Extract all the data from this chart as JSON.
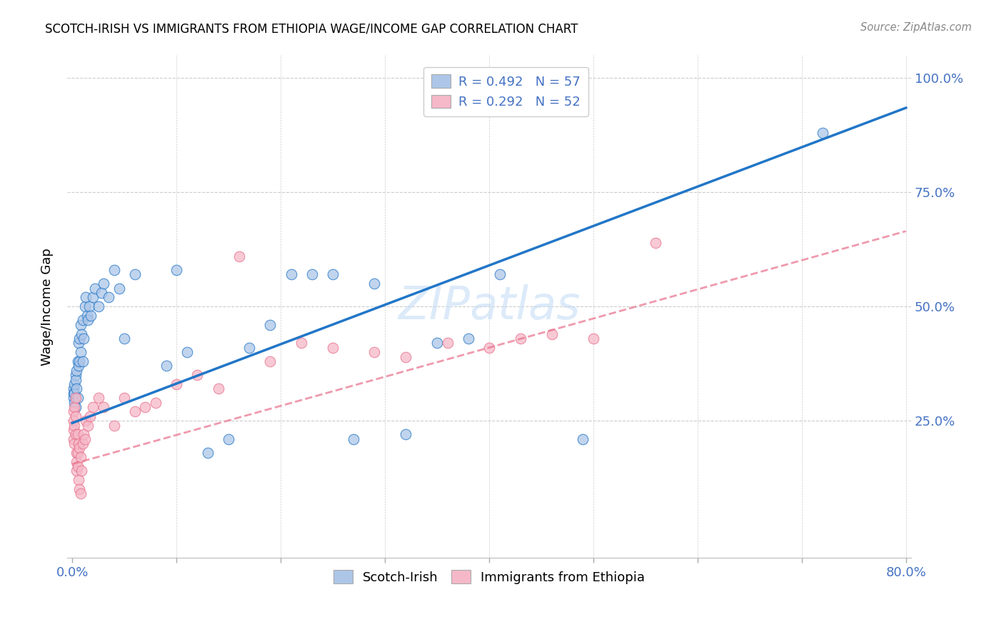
{
  "title": "SCOTCH-IRISH VS IMMIGRANTS FROM ETHIOPIA WAGE/INCOME GAP CORRELATION CHART",
  "source": "Source: ZipAtlas.com",
  "ylabel": "Wage/Income Gap",
  "ytick_labels": [
    "25.0%",
    "50.0%",
    "75.0%",
    "100.0%"
  ],
  "ytick_positions": [
    0.25,
    0.5,
    0.75,
    1.0
  ],
  "legend_r1": "R = 0.492",
  "legend_n1": "N = 57",
  "legend_r2": "R = 0.292",
  "legend_n2": "N = 52",
  "legend_label1": "Scotch-Irish",
  "legend_label2": "Immigrants from Ethiopia",
  "scotch_irish_color": "#adc6e8",
  "ethiopia_color": "#f5b8c8",
  "scotch_irish_line_color": "#2176c7",
  "ethiopia_line_color": "#e8708a",
  "watermark": "ZIPatlas",
  "xlim": [
    0.0,
    0.8
  ],
  "ylim": [
    -0.05,
    1.05
  ],
  "si_line_x0": 0.0,
  "si_line_y0": 0.245,
  "si_line_x1": 0.8,
  "si_line_y1": 0.935,
  "eth_line_x0": 0.0,
  "eth_line_y0": 0.155,
  "eth_line_x1": 0.8,
  "eth_line_y1": 0.665,
  "scotch_irish_x": [
    0.001,
    0.001,
    0.001,
    0.002,
    0.002,
    0.002,
    0.003,
    0.003,
    0.003,
    0.004,
    0.004,
    0.005,
    0.005,
    0.006,
    0.006,
    0.007,
    0.007,
    0.008,
    0.008,
    0.009,
    0.01,
    0.01,
    0.011,
    0.012,
    0.013,
    0.014,
    0.015,
    0.016,
    0.018,
    0.02,
    0.022,
    0.025,
    0.028,
    0.03,
    0.035,
    0.04,
    0.045,
    0.05,
    0.06,
    0.09,
    0.1,
    0.11,
    0.13,
    0.15,
    0.17,
    0.19,
    0.21,
    0.23,
    0.25,
    0.27,
    0.29,
    0.32,
    0.35,
    0.38,
    0.41,
    0.49,
    0.72
  ],
  "scotch_irish_y": [
    0.32,
    0.31,
    0.3,
    0.33,
    0.31,
    0.29,
    0.35,
    0.34,
    0.28,
    0.36,
    0.32,
    0.38,
    0.3,
    0.42,
    0.37,
    0.43,
    0.38,
    0.46,
    0.4,
    0.44,
    0.47,
    0.38,
    0.43,
    0.5,
    0.52,
    0.48,
    0.47,
    0.5,
    0.48,
    0.52,
    0.54,
    0.5,
    0.53,
    0.55,
    0.52,
    0.58,
    0.54,
    0.43,
    0.57,
    0.37,
    0.58,
    0.4,
    0.18,
    0.21,
    0.41,
    0.46,
    0.57,
    0.57,
    0.57,
    0.21,
    0.55,
    0.22,
    0.42,
    0.43,
    0.57,
    0.21,
    0.88
  ],
  "ethiopia_x": [
    0.001,
    0.001,
    0.001,
    0.001,
    0.002,
    0.002,
    0.002,
    0.003,
    0.003,
    0.003,
    0.004,
    0.004,
    0.004,
    0.005,
    0.005,
    0.005,
    0.006,
    0.006,
    0.007,
    0.007,
    0.008,
    0.008,
    0.009,
    0.01,
    0.011,
    0.012,
    0.013,
    0.015,
    0.017,
    0.02,
    0.025,
    0.03,
    0.04,
    0.05,
    0.06,
    0.07,
    0.08,
    0.1,
    0.12,
    0.14,
    0.16,
    0.19,
    0.22,
    0.25,
    0.29,
    0.32,
    0.36,
    0.4,
    0.43,
    0.46,
    0.5,
    0.56
  ],
  "ethiopia_y": [
    0.27,
    0.25,
    0.23,
    0.21,
    0.28,
    0.24,
    0.2,
    0.3,
    0.26,
    0.22,
    0.18,
    0.16,
    0.14,
    0.22,
    0.18,
    0.15,
    0.2,
    0.12,
    0.19,
    0.1,
    0.17,
    0.09,
    0.14,
    0.2,
    0.22,
    0.21,
    0.25,
    0.24,
    0.26,
    0.28,
    0.3,
    0.28,
    0.24,
    0.3,
    0.27,
    0.28,
    0.29,
    0.33,
    0.35,
    0.32,
    0.61,
    0.38,
    0.42,
    0.41,
    0.4,
    0.39,
    0.42,
    0.41,
    0.43,
    0.44,
    0.43,
    0.64
  ]
}
